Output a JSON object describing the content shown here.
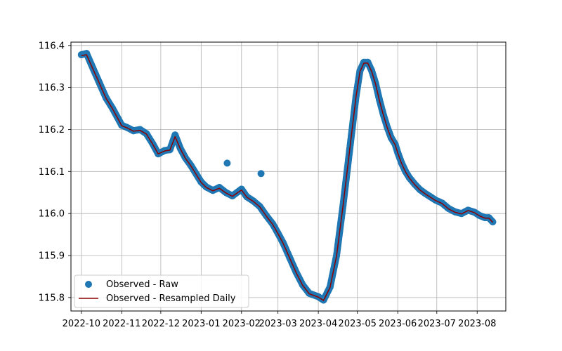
{
  "chart_data": {
    "type": "scatter",
    "title": "",
    "xlabel": "",
    "ylabel": "",
    "x_axis_type": "date",
    "xlim": [
      "2022-09-23",
      "2023-08-23"
    ],
    "ylim": [
      115.768,
      116.408
    ],
    "grid": true,
    "legend_position": "lower-left",
    "x_ticks": [
      "2022-10-01",
      "2022-11-01",
      "2022-12-01",
      "2023-01-01",
      "2023-02-01",
      "2023-03-01",
      "2023-04-01",
      "2023-05-01",
      "2023-06-01",
      "2023-07-01",
      "2023-08-01"
    ],
    "x_tick_labels": [
      "2022-10",
      "2022-11",
      "2022-12",
      "2023-01",
      "2023-02",
      "2023-03",
      "2023-04",
      "2023-05",
      "2023-06",
      "2023-07",
      "2023-08"
    ],
    "y_ticks": [
      115.8,
      115.9,
      116.0,
      116.1,
      116.2,
      116.3,
      116.4
    ],
    "y_tick_labels": [
      "115.8",
      "115.9",
      "116.0",
      "116.1",
      "116.2",
      "116.3",
      "116.4"
    ],
    "series": [
      {
        "name": "Observed - Raw",
        "kind": "scatter",
        "color": "#1f77b4",
        "x": [
          "2022-10-01",
          "2022-10-05",
          "2022-10-10",
          "2022-10-15",
          "2022-10-20",
          "2022-10-25",
          "2022-11-01",
          "2022-11-05",
          "2022-11-10",
          "2022-11-15",
          "2022-11-20",
          "2022-11-25",
          "2022-11-29",
          "2022-12-04",
          "2022-12-08",
          "2022-12-12",
          "2022-12-16",
          "2022-12-20",
          "2022-12-24",
          "2022-12-28",
          "2023-01-01",
          "2023-01-05",
          "2023-01-10",
          "2023-01-15",
          "2023-01-20",
          "2023-01-25",
          "2023-02-01",
          "2023-02-05",
          "2023-02-10",
          "2023-02-15",
          "2023-02-20",
          "2023-02-25",
          "2023-03-01",
          "2023-03-05",
          "2023-03-10",
          "2023-03-15",
          "2023-03-20",
          "2023-03-25",
          "2023-04-01",
          "2023-04-05",
          "2023-04-10",
          "2023-04-15",
          "2023-04-20",
          "2023-04-25",
          "2023-04-30",
          "2023-05-03",
          "2023-05-06",
          "2023-05-09",
          "2023-05-12",
          "2023-05-15",
          "2023-05-18",
          "2023-05-21",
          "2023-05-24",
          "2023-05-27",
          "2023-05-30",
          "2023-06-01",
          "2023-06-04",
          "2023-06-07",
          "2023-06-10",
          "2023-06-14",
          "2023-06-18",
          "2023-06-22",
          "2023-06-26",
          "2023-06-30",
          "2023-07-05",
          "2023-07-10",
          "2023-07-15",
          "2023-07-20",
          "2023-07-25",
          "2023-07-30",
          "2023-08-03",
          "2023-08-07",
          "2023-08-10",
          "2023-08-13",
          "2023-01-21",
          "2023-02-16"
        ],
        "y": [
          116.378,
          116.381,
          116.345,
          116.31,
          116.275,
          116.25,
          116.21,
          116.205,
          116.197,
          116.2,
          116.19,
          116.165,
          116.142,
          116.15,
          116.152,
          116.187,
          116.155,
          116.132,
          116.115,
          116.095,
          116.075,
          116.063,
          116.055,
          116.062,
          116.05,
          116.042,
          116.058,
          116.04,
          116.03,
          116.017,
          115.995,
          115.975,
          115.953,
          115.93,
          115.895,
          115.86,
          115.83,
          115.81,
          115.802,
          115.794,
          115.825,
          115.9,
          116.02,
          116.15,
          116.28,
          116.34,
          116.36,
          116.36,
          116.34,
          116.31,
          116.27,
          116.235,
          116.205,
          116.18,
          116.165,
          116.145,
          116.12,
          116.1,
          116.085,
          116.07,
          116.057,
          116.048,
          116.04,
          116.032,
          116.025,
          116.012,
          116.004,
          116.0,
          116.008,
          116.003,
          115.995,
          115.99,
          115.99,
          115.98,
          116.12,
          116.095
        ]
      },
      {
        "name": "Observed - Resampled Daily",
        "kind": "line",
        "color": "#8b0000",
        "x": [
          "2022-10-01",
          "2022-10-05",
          "2022-10-10",
          "2022-10-15",
          "2022-10-20",
          "2022-10-25",
          "2022-11-01",
          "2022-11-05",
          "2022-11-10",
          "2022-11-15",
          "2022-11-20",
          "2022-11-25",
          "2022-11-29",
          "2022-12-04",
          "2022-12-08",
          "2022-12-12",
          "2022-12-16",
          "2022-12-20",
          "2022-12-24",
          "2022-12-28",
          "2023-01-01",
          "2023-01-05",
          "2023-01-10",
          "2023-01-15",
          "2023-01-20",
          "2023-01-25",
          "2023-02-01",
          "2023-02-05",
          "2023-02-10",
          "2023-02-15",
          "2023-02-20",
          "2023-02-25",
          "2023-03-01",
          "2023-03-05",
          "2023-03-10",
          "2023-03-15",
          "2023-03-20",
          "2023-03-25",
          "2023-04-01",
          "2023-04-05",
          "2023-04-10",
          "2023-04-15",
          "2023-04-20",
          "2023-04-25",
          "2023-04-30",
          "2023-05-03",
          "2023-05-06",
          "2023-05-09",
          "2023-05-12",
          "2023-05-15",
          "2023-05-18",
          "2023-05-21",
          "2023-05-24",
          "2023-05-27",
          "2023-05-30",
          "2023-06-01",
          "2023-06-04",
          "2023-06-07",
          "2023-06-10",
          "2023-06-14",
          "2023-06-18",
          "2023-06-22",
          "2023-06-26",
          "2023-06-30",
          "2023-07-05",
          "2023-07-10",
          "2023-07-15",
          "2023-07-20",
          "2023-07-25",
          "2023-07-30",
          "2023-08-03",
          "2023-08-07",
          "2023-08-10",
          "2023-08-13"
        ],
        "y": [
          116.376,
          116.378,
          116.343,
          116.309,
          116.274,
          116.249,
          116.209,
          116.204,
          116.196,
          116.198,
          116.189,
          116.164,
          116.142,
          116.149,
          116.151,
          116.183,
          116.154,
          116.131,
          116.114,
          116.094,
          116.074,
          116.062,
          116.054,
          116.06,
          116.049,
          116.041,
          116.056,
          116.039,
          116.029,
          116.016,
          115.994,
          115.974,
          115.952,
          115.929,
          115.894,
          115.859,
          115.829,
          115.809,
          115.801,
          115.793,
          115.824,
          115.899,
          116.019,
          116.149,
          116.279,
          116.338,
          116.358,
          116.358,
          116.338,
          116.308,
          116.268,
          116.234,
          116.204,
          116.179,
          116.164,
          116.144,
          116.119,
          116.099,
          116.084,
          116.069,
          116.056,
          116.047,
          116.039,
          116.031,
          116.024,
          116.011,
          116.003,
          115.999,
          116.007,
          116.002,
          115.994,
          115.989,
          115.989,
          115.979
        ]
      }
    ]
  }
}
